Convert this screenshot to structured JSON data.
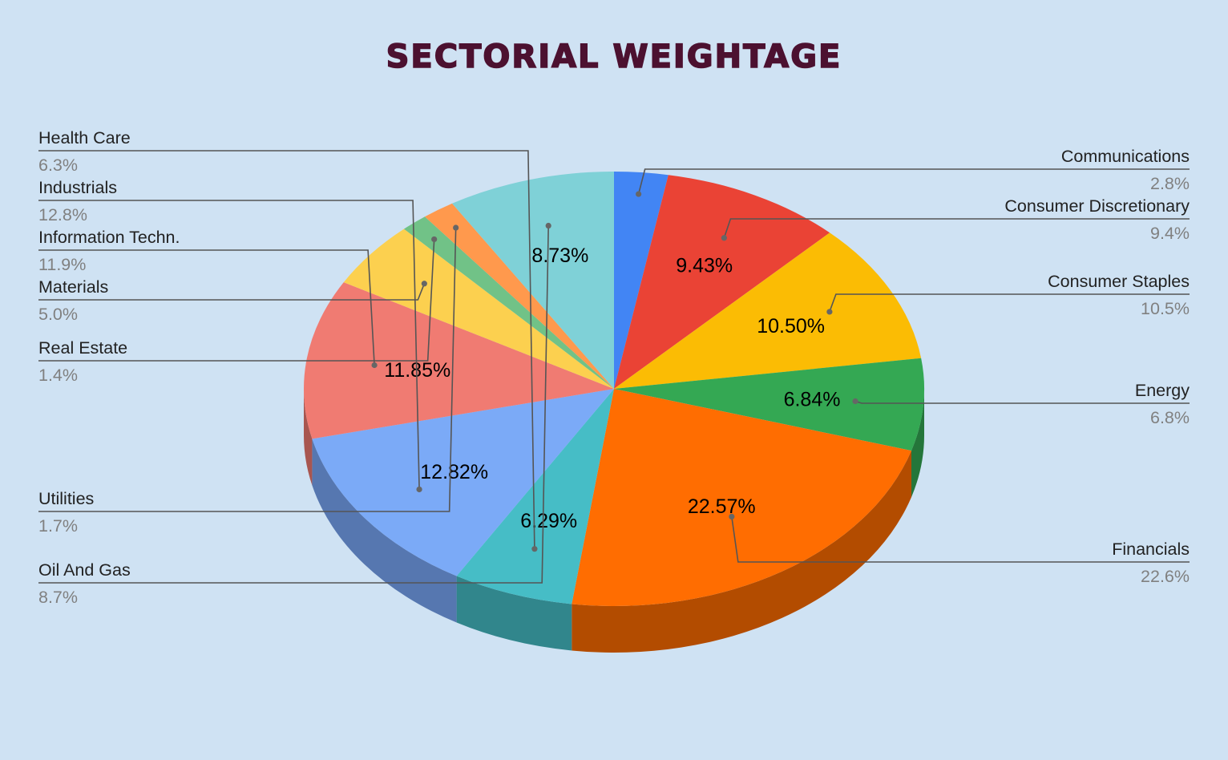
{
  "chart_data": {
    "type": "pie",
    "title": "SECTORIAL WEIGHTAGE",
    "slices": [
      {
        "name": "Communications",
        "value": 2.8,
        "slice_label": "",
        "legend_value": "2.8%",
        "color": "#4285f4",
        "side_color": "#2f5fad"
      },
      {
        "name": "Consumer Discretionary",
        "value": 9.43,
        "slice_label": "9.43%",
        "legend_value": "9.4%",
        "color": "#ea4335",
        "side_color": "#a32e25"
      },
      {
        "name": "Consumer Staples",
        "value": 10.5,
        "slice_label": "10.50%",
        "legend_value": "10.5%",
        "color": "#fbbc04",
        "side_color": "#b08403"
      },
      {
        "name": "Energy",
        "value": 6.84,
        "slice_label": "6.84%",
        "legend_value": "6.8%",
        "color": "#34a853",
        "side_color": "#24763a"
      },
      {
        "name": "Financials",
        "value": 22.57,
        "slice_label": "22.57%",
        "legend_value": "22.6%",
        "color": "#ff6d01",
        "side_color": "#b34c00"
      },
      {
        "name": "Health Care",
        "value": 6.29,
        "slice_label": "6.29%",
        "legend_value": "6.3%",
        "color": "#46bdc6",
        "side_color": "#31868c"
      },
      {
        "name": "Industrials",
        "value": 12.82,
        "slice_label": "12.82%",
        "legend_value": "12.8%",
        "color": "#7baaf7",
        "side_color": "#5677b0"
      },
      {
        "name": "Information Techn.",
        "value": 11.85,
        "slice_label": "11.85%",
        "legend_value": "11.9%",
        "color": "#f07b72",
        "side_color": "#a85650"
      },
      {
        "name": "Materials",
        "value": 5.0,
        "slice_label": "",
        "legend_value": "5.0%",
        "color": "#fcd04f",
        "side_color": "#b09137"
      },
      {
        "name": "Real Estate",
        "value": 1.4,
        "slice_label": "",
        "legend_value": "1.4%",
        "color": "#71c287",
        "side_color": "#4f885f"
      },
      {
        "name": "Utilities",
        "value": 1.7,
        "slice_label": "",
        "legend_value": "1.7%",
        "color": "#ff994d",
        "side_color": "#b36b36"
      },
      {
        "name": "Oil And Gas",
        "value": 8.73,
        "slice_label": "8.73%",
        "legend_value": "8.7%",
        "color": "#7fd1d7",
        "side_color": "#5a9297"
      }
    ],
    "start_angle": "12 o'clock",
    "direction": "clockwise",
    "style": "3d",
    "legend": "leader-line labels on both sides"
  },
  "background_color": "#cfe2f3",
  "title_color": "#4c1130"
}
